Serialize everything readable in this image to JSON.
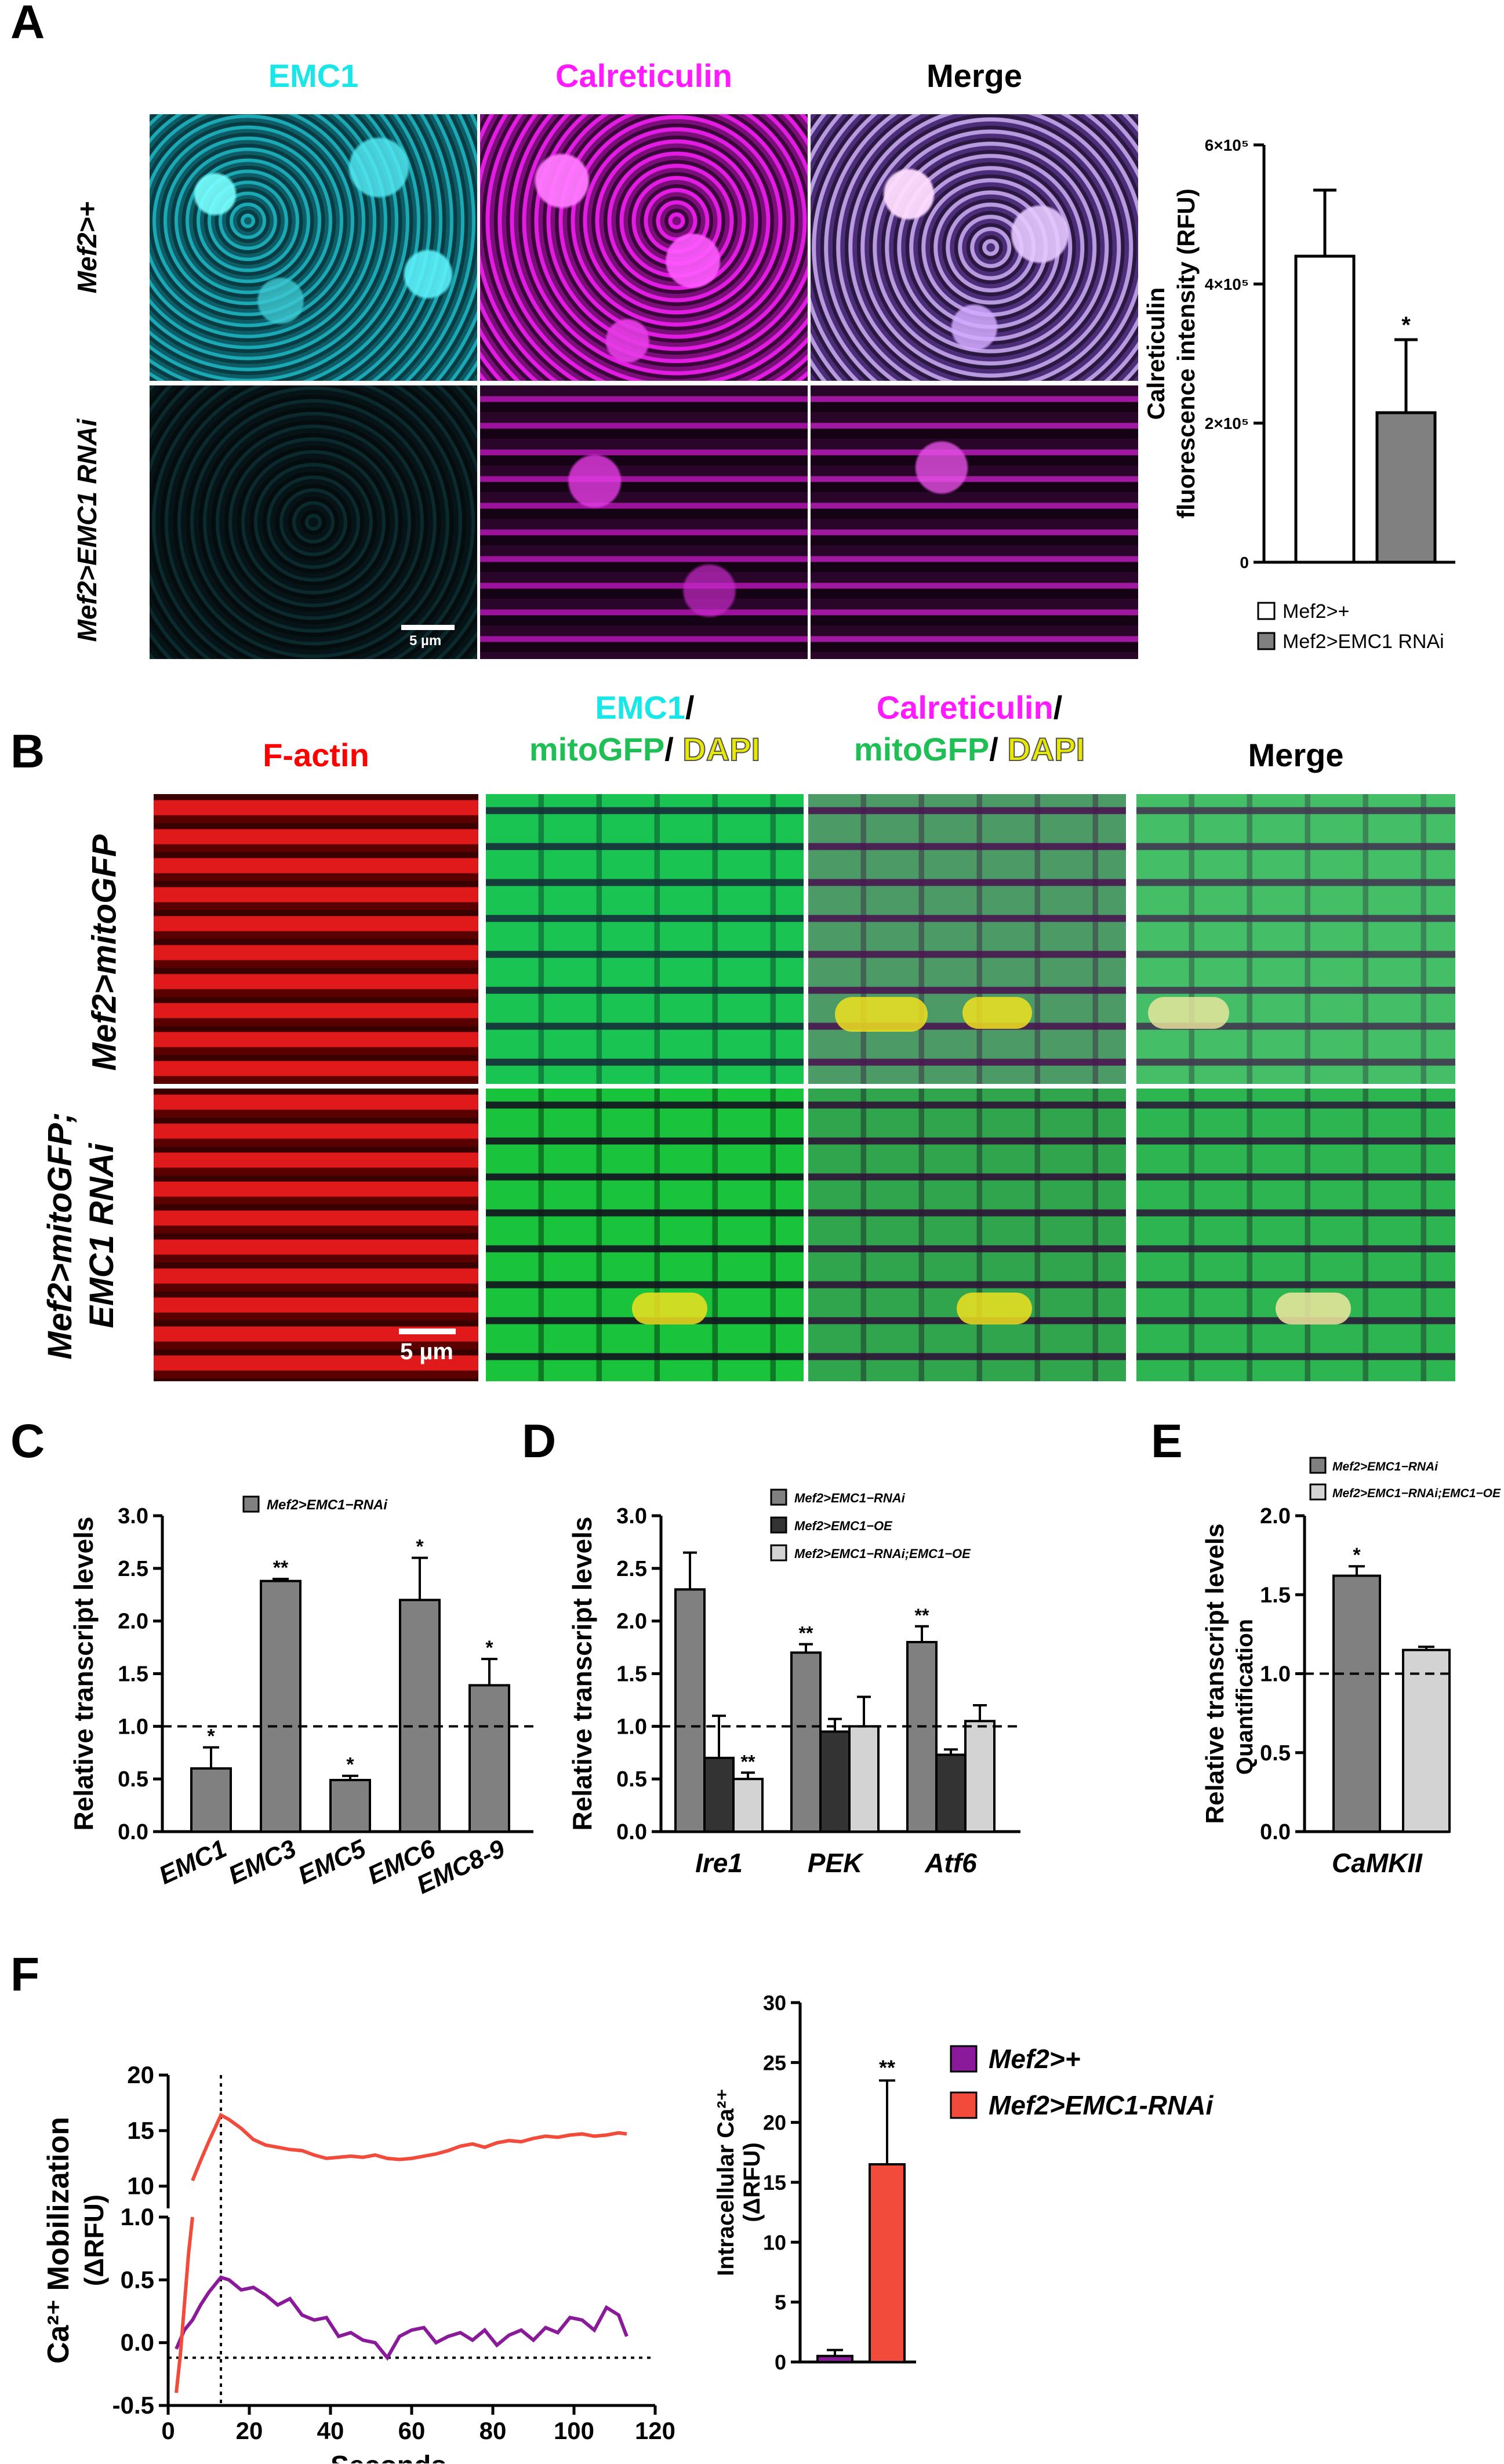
{
  "panels": {
    "A": {
      "label": "A",
      "headers": [
        "EMC1",
        "Calreticulin",
        "Merge"
      ],
      "header_colors": [
        "#19e6e6",
        "#ff1aff",
        "#000000"
      ],
      "rows": [
        "Mef2>+",
        "Mef2>EMC1 RNAi"
      ],
      "scale_bar": "5 µm"
    },
    "B": {
      "label": "B",
      "headers": {
        "col1": "F-actin",
        "col2_line1": "EMC1",
        "col2_slash1": "/",
        "col2_mito": "mitoGFP",
        "col2_slash2": "/",
        "col2_dapi": "DAPI",
        "col3_line1": "Calreticulin",
        "col3_slash1": "/",
        "col3_mito": "mitoGFP",
        "col3_slash2": "/",
        "col3_dapi": "DAPI",
        "col4": "Merge"
      },
      "colors": {
        "factin": "#ff0000",
        "emc1": "#19e6e6",
        "calret": "#ff1aff",
        "mito": "#1fbf55",
        "dapi": "#e8e800"
      },
      "rows": {
        "row1": "Mef2>mitoGFP",
        "row2_line1": "Mef2>mitoGFP;",
        "row2_line2": "EMC1 RNAi"
      },
      "scale_bar": "5 µm"
    },
    "C": {
      "label": "C"
    },
    "D": {
      "label": "D"
    },
    "E": {
      "label": "E"
    },
    "F": {
      "label": "F"
    }
  },
  "chart_data": [
    {
      "id": "A-bar",
      "type": "bar",
      "categories": [
        "Mef2>+",
        "Mef2>EMC1 RNAi"
      ],
      "values": [
        440000,
        215000
      ],
      "errors": [
        95000,
        105000
      ],
      "colors": [
        "#ffffff",
        "#808080"
      ],
      "significance": [
        "",
        "*"
      ],
      "ylabel_line1": "Calreticulin",
      "ylabel_line2": "fluorescence intensity (RFU)",
      "ylim": [
        0,
        600000
      ],
      "yticks": [
        0,
        200000,
        400000,
        600000
      ],
      "ytick_labels": [
        "0",
        "2×10⁵",
        "4×10⁵",
        "6×10⁵"
      ],
      "legend": [
        "Mef2>+",
        "Mef2>EMC1 RNAi"
      ]
    },
    {
      "id": "C-bar",
      "type": "bar",
      "categories": [
        "EMC1",
        "EMC3",
        "EMC5",
        "EMC6",
        "EMC8-9"
      ],
      "values": [
        0.6,
        2.38,
        0.49,
        2.2,
        1.39
      ],
      "errors": [
        0.2,
        0.02,
        0.04,
        0.4,
        0.25
      ],
      "significance": [
        "*",
        "**",
        "*",
        "*",
        "*"
      ],
      "series_name": "Mef2>EMC1−RNAi",
      "color": "#808080",
      "ylabel": "Relative  transcript levels",
      "ylim": [
        0,
        3.0
      ],
      "yticks": [
        "0.0",
        "0.5",
        "1.0",
        "1.5",
        "2.0",
        "2.5",
        "3.0"
      ],
      "reference_line": 1.0
    },
    {
      "id": "D-bar",
      "type": "bar",
      "categories": [
        "Ire1",
        "PEK",
        "Atf6"
      ],
      "series": [
        {
          "name": "Mef2>EMC1−RNAi",
          "color": "#808080",
          "values": [
            2.3,
            1.7,
            1.8
          ],
          "errors": [
            0.35,
            0.08,
            0.15
          ],
          "significance": [
            "",
            "**",
            "**"
          ]
        },
        {
          "name": "Mef2>EMC1−OE",
          "color": "#333333",
          "values": [
            0.7,
            0.95,
            0.73
          ],
          "errors": [
            0.4,
            0.12,
            0.05
          ],
          "significance": [
            "",
            "",
            ""
          ]
        },
        {
          "name": "Mef2>EMC1−RNAi;EMC1−OE",
          "color": "#d3d3d3",
          "values": [
            0.5,
            1.0,
            1.05
          ],
          "errors": [
            0.06,
            0.28,
            0.15
          ],
          "significance": [
            "**",
            "",
            ""
          ]
        }
      ],
      "ylabel": "Relative  transcript levels",
      "ylim": [
        0,
        3.0
      ],
      "yticks": [
        "0.0",
        "0.5",
        "1.0",
        "1.5",
        "2.0",
        "2.5",
        "3.0"
      ],
      "reference_line": 1.0
    },
    {
      "id": "E-bar",
      "type": "bar",
      "categories": [
        "CaMKII"
      ],
      "series": [
        {
          "name": "Mef2>EMC1−RNAi",
          "color": "#808080",
          "values": [
            1.62
          ],
          "errors": [
            0.06
          ],
          "significance": [
            "*"
          ]
        },
        {
          "name": "Mef2>EMC1−RNAi;EMC1−OE",
          "color": "#d3d3d3",
          "values": [
            1.15
          ],
          "errors": [
            0.02
          ],
          "significance": [
            ""
          ]
        }
      ],
      "ylabel_line1": "Relative  transcript levels",
      "ylabel_line2": "Quantification",
      "ylim": [
        0,
        2.0
      ],
      "yticks": [
        "0.0",
        "0.5",
        "1.0",
        "1.5",
        "2.0"
      ],
      "reference_line": 1.0
    },
    {
      "id": "F-line",
      "type": "line",
      "xlabel": "Seconds",
      "ylabel_line1": "Ca²⁺ Mobilization",
      "ylabel_line2": "(ΔRFU)",
      "xlim": [
        0,
        120
      ],
      "xticks": [
        "0",
        "20",
        "40",
        "60",
        "80",
        "100",
        "120"
      ],
      "upper_yticks": [
        "10",
        "15",
        "20"
      ],
      "lower_yticks": [
        "-0.5",
        "0.0",
        "0.5",
        "1.0"
      ],
      "upper_ylim": [
        8,
        20
      ],
      "lower_ylim": [
        -0.5,
        1.0
      ],
      "vline_x": 13,
      "hline_y": -0.12,
      "series": [
        {
          "name": "Mef2>+",
          "color": "#8b1a9b",
          "x": [
            2,
            4,
            6,
            8,
            10,
            12,
            13,
            15,
            18,
            21,
            24,
            27,
            30,
            33,
            36,
            39,
            42,
            45,
            48,
            51,
            54,
            57,
            60,
            63,
            66,
            69,
            72,
            75,
            78,
            81,
            84,
            87,
            90,
            93,
            96,
            99,
            102,
            105,
            108,
            111,
            113
          ],
          "y": [
            -0.05,
            0.1,
            0.18,
            0.3,
            0.4,
            0.48,
            0.52,
            0.5,
            0.42,
            0.44,
            0.38,
            0.3,
            0.35,
            0.22,
            0.18,
            0.2,
            0.05,
            0.08,
            0.02,
            0.0,
            -0.12,
            0.05,
            0.1,
            0.12,
            0.0,
            0.05,
            0.08,
            0.02,
            0.1,
            -0.02,
            0.06,
            0.1,
            0.02,
            0.12,
            0.08,
            0.2,
            0.18,
            0.1,
            0.28,
            0.22,
            0.05
          ]
        },
        {
          "name": "Mef2>EMC1-RNAi",
          "color": "#f24b3c",
          "x_lower": [
            2,
            3,
            4,
            5,
            6
          ],
          "y_lower": [
            -0.4,
            -0.1,
            0.3,
            0.7,
            1.0
          ],
          "x": [
            6,
            8,
            10,
            12,
            13,
            15,
            18,
            21,
            24,
            27,
            30,
            33,
            36,
            39,
            42,
            45,
            48,
            51,
            54,
            57,
            60,
            63,
            66,
            69,
            72,
            75,
            78,
            81,
            84,
            87,
            90,
            93,
            96,
            99,
            102,
            105,
            108,
            111,
            113
          ],
          "y": [
            10.5,
            12.3,
            14.0,
            15.6,
            16.4,
            16.0,
            15.2,
            14.2,
            13.7,
            13.5,
            13.3,
            13.2,
            12.8,
            12.5,
            12.6,
            12.7,
            12.6,
            12.8,
            12.5,
            12.4,
            12.5,
            12.7,
            12.9,
            13.2,
            13.6,
            13.8,
            13.5,
            13.9,
            14.1,
            14.0,
            14.3,
            14.5,
            14.4,
            14.6,
            14.7,
            14.5,
            14.6,
            14.8,
            14.7
          ]
        }
      ]
    },
    {
      "id": "F-bar",
      "type": "bar",
      "categories": [
        "Mef2>+",
        "Mef2>EMC1-RNAi"
      ],
      "values": [
        0.5,
        16.5
      ],
      "errors": [
        0.5,
        7.0
      ],
      "colors": [
        "#8b1a9b",
        "#f24b3c"
      ],
      "significance": [
        "",
        "**"
      ],
      "ylabel_line1": "Intracellular Ca²⁺",
      "ylabel_line2": "(ΔRFU)",
      "ylim": [
        0,
        30
      ],
      "yticks": [
        "0",
        "5",
        "10",
        "15",
        "20",
        "25",
        "30"
      ],
      "legend": [
        "Mef2>+",
        "Mef2>EMC1-RNAi"
      ]
    }
  ]
}
